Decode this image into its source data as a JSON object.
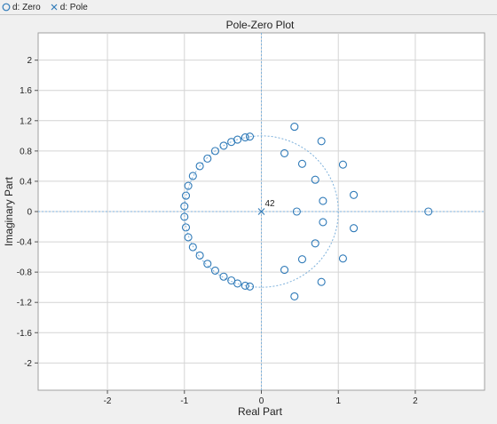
{
  "legend": {
    "zero_label": "d: Zero",
    "pole_label": "d: Pole"
  },
  "colors": {
    "marker": "#2f7ab8",
    "unit_circle": "#7fb2dc",
    "axis_line": "#7fb2dc",
    "grid": "#d4d4d4",
    "plot_bg": "#ffffff",
    "frame_bg": "#f0f0f0"
  },
  "chart_data": {
    "type": "scatter",
    "title": "Pole-Zero Plot",
    "xlabel": "Real Part",
    "ylabel": "Imaginary Part",
    "xlim": [
      -2.9,
      2.9
    ],
    "ylim": [
      -2.36,
      2.36
    ],
    "xticks": [
      -2,
      -1,
      0,
      1,
      2
    ],
    "yticks": [
      2,
      1.6,
      1.2,
      0.8,
      0.4,
      0,
      -0.4,
      -0.8,
      -1.2,
      -1.6,
      -2
    ],
    "grid": true,
    "unit_circle": true,
    "pole_annotation": "42",
    "series": [
      {
        "name": "d: Zero",
        "marker": "circle",
        "points": [
          [
            -0.15,
            0.99
          ],
          [
            -0.21,
            0.98
          ],
          [
            -0.31,
            0.95
          ],
          [
            -0.39,
            0.92
          ],
          [
            -0.49,
            0.87
          ],
          [
            -0.6,
            0.8
          ],
          [
            -0.7,
            0.7
          ],
          [
            -0.8,
            0.6
          ],
          [
            -0.89,
            0.47
          ],
          [
            -0.95,
            0.34
          ],
          [
            -0.98,
            0.21
          ],
          [
            -1.0,
            0.07
          ],
          [
            -1.0,
            -0.07
          ],
          [
            -0.98,
            -0.21
          ],
          [
            -0.95,
            -0.34
          ],
          [
            -0.89,
            -0.47
          ],
          [
            -0.8,
            -0.58
          ],
          [
            -0.7,
            -0.69
          ],
          [
            -0.6,
            -0.78
          ],
          [
            -0.49,
            -0.86
          ],
          [
            -0.39,
            -0.91
          ],
          [
            -0.31,
            -0.95
          ],
          [
            -0.21,
            -0.98
          ],
          [
            -0.15,
            -0.99
          ],
          [
            0.43,
            1.12
          ],
          [
            0.3,
            0.77
          ],
          [
            0.53,
            0.63
          ],
          [
            0.78,
            0.93
          ],
          [
            0.7,
            0.42
          ],
          [
            0.8,
            0.14
          ],
          [
            1.06,
            0.62
          ],
          [
            1.2,
            0.22
          ],
          [
            0.46,
            0.0
          ],
          [
            0.8,
            -0.14
          ],
          [
            0.7,
            -0.42
          ],
          [
            1.2,
            -0.22
          ],
          [
            0.53,
            -0.63
          ],
          [
            0.3,
            -0.77
          ],
          [
            1.06,
            -0.62
          ],
          [
            0.78,
            -0.93
          ],
          [
            0.43,
            -1.12
          ],
          [
            2.17,
            0.0
          ]
        ]
      },
      {
        "name": "d: Pole",
        "marker": "x",
        "points": [
          [
            0,
            0
          ]
        ]
      }
    ]
  }
}
